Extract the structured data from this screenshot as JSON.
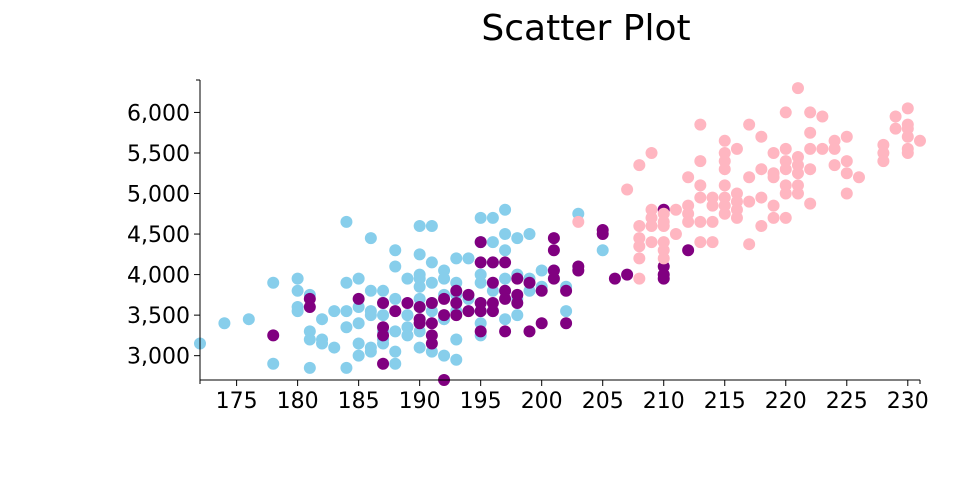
{
  "chart_data": {
    "type": "scatter",
    "title": "Scatter Plot",
    "xlabel": "",
    "ylabel": "",
    "xlim": [
      172,
      231
    ],
    "ylim": [
      2700,
      6400
    ],
    "x_ticks": [
      175,
      180,
      185,
      190,
      195,
      200,
      205,
      210,
      215,
      220,
      225,
      230
    ],
    "y_ticks": [
      3000,
      3500,
      4000,
      4500,
      5000,
      5500,
      6000
    ],
    "x_tick_labels": [
      "175",
      "180",
      "185",
      "190",
      "195",
      "200",
      "205",
      "210",
      "215",
      "220",
      "225",
      "230"
    ],
    "y_tick_labels": [
      "3,000",
      "3,500",
      "4,000",
      "4,500",
      "5,000",
      "5,500",
      "6,000"
    ],
    "grid": false,
    "legend": "none",
    "series": [
      {
        "color": "#87ceeb",
        "points": [
          [
            172,
            3150
          ],
          [
            174,
            3400
          ],
          [
            176,
            3450
          ],
          [
            178,
            3900
          ],
          [
            178,
            2900
          ],
          [
            180,
            3950
          ],
          [
            180,
            3800
          ],
          [
            180,
            3600
          ],
          [
            180,
            3550
          ],
          [
            181,
            3750
          ],
          [
            181,
            3300
          ],
          [
            181,
            3200
          ],
          [
            181,
            2850
          ],
          [
            182,
            3450
          ],
          [
            182,
            3200
          ],
          [
            182,
            3150
          ],
          [
            183,
            3550
          ],
          [
            183,
            3100
          ],
          [
            184,
            4650
          ],
          [
            184,
            3900
          ],
          [
            184,
            3550
          ],
          [
            184,
            3350
          ],
          [
            184,
            2850
          ],
          [
            185,
            3950
          ],
          [
            185,
            3600
          ],
          [
            185,
            3400
          ],
          [
            185,
            3150
          ],
          [
            185,
            3000
          ],
          [
            186,
            4450
          ],
          [
            186,
            3800
          ],
          [
            186,
            3550
          ],
          [
            186,
            3500
          ],
          [
            186,
            3100
          ],
          [
            186,
            3050
          ],
          [
            187,
            3800
          ],
          [
            187,
            3650
          ],
          [
            187,
            3500
          ],
          [
            187,
            3300
          ],
          [
            187,
            3200
          ],
          [
            187,
            3150
          ],
          [
            188,
            4300
          ],
          [
            188,
            4100
          ],
          [
            188,
            3700
          ],
          [
            188,
            3300
          ],
          [
            188,
            3050
          ],
          [
            188,
            2900
          ],
          [
            189,
            3950
          ],
          [
            189,
            3500
          ],
          [
            189,
            3350
          ],
          [
            189,
            3250
          ],
          [
            190,
            4600
          ],
          [
            190,
            4250
          ],
          [
            190,
            4000
          ],
          [
            190,
            3950
          ],
          [
            190,
            3850
          ],
          [
            190,
            3700
          ],
          [
            190,
            3600
          ],
          [
            190,
            3400
          ],
          [
            190,
            3300
          ],
          [
            190,
            3100
          ],
          [
            191,
            4600
          ],
          [
            191,
            4150
          ],
          [
            191,
            3900
          ],
          [
            191,
            3650
          ],
          [
            191,
            3550
          ],
          [
            191,
            3050
          ],
          [
            192,
            4050
          ],
          [
            192,
            3950
          ],
          [
            192,
            3750
          ],
          [
            192,
            3450
          ],
          [
            192,
            3000
          ],
          [
            193,
            4200
          ],
          [
            193,
            3900
          ],
          [
            193,
            3750
          ],
          [
            193,
            3550
          ],
          [
            193,
            3200
          ],
          [
            193,
            2950
          ],
          [
            194,
            4200
          ],
          [
            194,
            3700
          ],
          [
            195,
            4700
          ],
          [
            195,
            4400
          ],
          [
            195,
            4000
          ],
          [
            195,
            3900
          ],
          [
            195,
            3650
          ],
          [
            195,
            3550
          ],
          [
            195,
            3400
          ],
          [
            195,
            3250
          ],
          [
            196,
            4700
          ],
          [
            196,
            4400
          ],
          [
            196,
            4150
          ],
          [
            196,
            3800
          ],
          [
            196,
            3550
          ],
          [
            197,
            4800
          ],
          [
            197,
            4500
          ],
          [
            197,
            4300
          ],
          [
            197,
            3950
          ],
          [
            197,
            3800
          ],
          [
            197,
            3450
          ],
          [
            198,
            4450
          ],
          [
            198,
            4000
          ],
          [
            198,
            3700
          ],
          [
            198,
            3500
          ],
          [
            199,
            4500
          ],
          [
            199,
            3950
          ],
          [
            199,
            3800
          ],
          [
            200,
            4050
          ],
          [
            200,
            3850
          ],
          [
            201,
            4050
          ],
          [
            202,
            3850
          ],
          [
            202,
            3550
          ],
          [
            203,
            4750
          ],
          [
            205,
            4300
          ]
        ]
      },
      {
        "color": "#800080",
        "points": [
          [
            178,
            3250
          ],
          [
            181,
            3700
          ],
          [
            181,
            3600
          ],
          [
            185,
            3700
          ],
          [
            187,
            3650
          ],
          [
            187,
            3350
          ],
          [
            187,
            3250
          ],
          [
            187,
            2900
          ],
          [
            188,
            3550
          ],
          [
            189,
            3650
          ],
          [
            190,
            3450
          ],
          [
            190,
            3400
          ],
          [
            190,
            3600
          ],
          [
            191,
            3650
          ],
          [
            191,
            3400
          ],
          [
            191,
            3250
          ],
          [
            191,
            3150
          ],
          [
            192,
            3700
          ],
          [
            192,
            3500
          ],
          [
            192,
            2700
          ],
          [
            193,
            3800
          ],
          [
            193,
            3650
          ],
          [
            193,
            3500
          ],
          [
            194,
            3750
          ],
          [
            194,
            3550
          ],
          [
            195,
            4400
          ],
          [
            195,
            4150
          ],
          [
            195,
            3650
          ],
          [
            195,
            3550
          ],
          [
            195,
            3300
          ],
          [
            196,
            3900
          ],
          [
            196,
            3650
          ],
          [
            196,
            3550
          ],
          [
            196,
            4150
          ],
          [
            197,
            3800
          ],
          [
            197,
            3700
          ],
          [
            197,
            3300
          ],
          [
            197,
            4150
          ],
          [
            198,
            3950
          ],
          [
            198,
            3750
          ],
          [
            198,
            3650
          ],
          [
            199,
            3900
          ],
          [
            199,
            3300
          ],
          [
            200,
            3800
          ],
          [
            200,
            3400
          ],
          [
            201,
            4450
          ],
          [
            201,
            4300
          ],
          [
            201,
            4050
          ],
          [
            201,
            3950
          ],
          [
            202,
            3400
          ],
          [
            202,
            3800
          ],
          [
            203,
            4100
          ],
          [
            203,
            4050
          ],
          [
            205,
            4550
          ],
          [
            205,
            4500
          ],
          [
            206,
            3950
          ],
          [
            207,
            4000
          ],
          [
            210,
            4800
          ],
          [
            210,
            4100
          ],
          [
            210,
            4000
          ],
          [
            210,
            3950
          ],
          [
            212,
            4300
          ]
        ]
      },
      {
        "color": "#ffb6c1",
        "points": [
          [
            203,
            4650
          ],
          [
            207,
            5050
          ],
          [
            208,
            5350
          ],
          [
            208,
            4600
          ],
          [
            208,
            4450
          ],
          [
            208,
            4350
          ],
          [
            208,
            4200
          ],
          [
            208,
            3950
          ],
          [
            209,
            5500
          ],
          [
            209,
            4800
          ],
          [
            209,
            4700
          ],
          [
            209,
            4600
          ],
          [
            209,
            4400
          ],
          [
            210,
            4750
          ],
          [
            210,
            4650
          ],
          [
            210,
            4600
          ],
          [
            210,
            4400
          ],
          [
            210,
            4300
          ],
          [
            210,
            4200
          ],
          [
            211,
            4800
          ],
          [
            211,
            4500
          ],
          [
            212,
            5200
          ],
          [
            212,
            4850
          ],
          [
            212,
            4750
          ],
          [
            212,
            4650
          ],
          [
            213,
            5850
          ],
          [
            213,
            5400
          ],
          [
            213,
            5100
          ],
          [
            213,
            4950
          ],
          [
            213,
            4650
          ],
          [
            213,
            4400
          ],
          [
            214,
            4950
          ],
          [
            214,
            4850
          ],
          [
            214,
            4650
          ],
          [
            214,
            4400
          ],
          [
            215,
            5650
          ],
          [
            215,
            5500
          ],
          [
            215,
            5400
          ],
          [
            215,
            5300
          ],
          [
            215,
            5100
          ],
          [
            215,
            4950
          ],
          [
            215,
            4850
          ],
          [
            215,
            4750
          ],
          [
            216,
            5550
          ],
          [
            216,
            5000
          ],
          [
            216,
            4900
          ],
          [
            216,
            4800
          ],
          [
            216,
            4700
          ],
          [
            217,
            5850
          ],
          [
            217,
            5200
          ],
          [
            217,
            4900
          ],
          [
            217,
            4375
          ],
          [
            218,
            5700
          ],
          [
            218,
            5300
          ],
          [
            218,
            4950
          ],
          [
            218,
            4600
          ],
          [
            219,
            5500
          ],
          [
            219,
            5250
          ],
          [
            219,
            5200
          ],
          [
            219,
            4850
          ],
          [
            219,
            4700
          ],
          [
            220,
            6000
          ],
          [
            220,
            5550
          ],
          [
            220,
            5400
          ],
          [
            220,
            5300
          ],
          [
            220,
            5100
          ],
          [
            220,
            5000
          ],
          [
            220,
            4700
          ],
          [
            221,
            6300
          ],
          [
            221,
            5450
          ],
          [
            221,
            5350
          ],
          [
            221,
            5250
          ],
          [
            221,
            5100
          ],
          [
            221,
            5000
          ],
          [
            222,
            6000
          ],
          [
            222,
            5750
          ],
          [
            222,
            5550
          ],
          [
            222,
            5300
          ],
          [
            222,
            4875
          ],
          [
            223,
            5950
          ],
          [
            223,
            5550
          ],
          [
            224,
            5650
          ],
          [
            224,
            5550
          ],
          [
            224,
            5350
          ],
          [
            225,
            5700
          ],
          [
            225,
            5400
          ],
          [
            225,
            5250
          ],
          [
            225,
            5000
          ],
          [
            226,
            5200
          ],
          [
            228,
            5600
          ],
          [
            228,
            5500
          ],
          [
            228,
            5400
          ],
          [
            229,
            5950
          ],
          [
            229,
            5800
          ],
          [
            230,
            6050
          ],
          [
            230,
            5850
          ],
          [
            230,
            5800
          ],
          [
            230,
            5700
          ],
          [
            230,
            5550
          ],
          [
            230,
            5500
          ],
          [
            231,
            5650
          ]
        ]
      }
    ]
  }
}
